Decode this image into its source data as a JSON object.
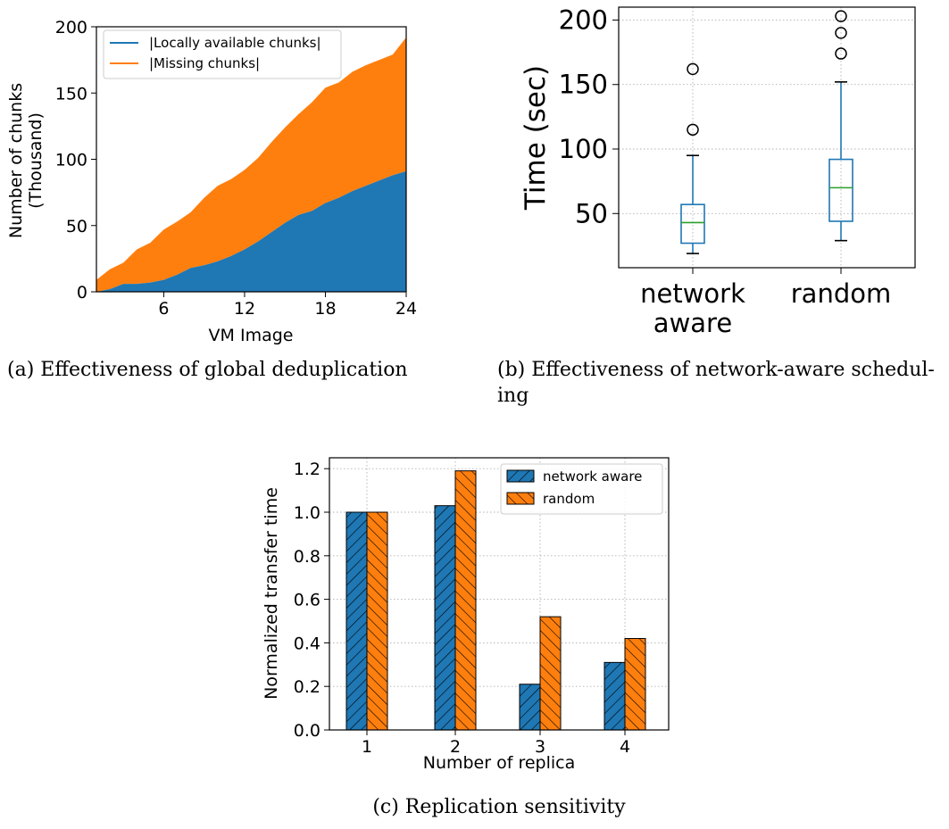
{
  "colors": {
    "blue": "#1f77b4",
    "orange": "#ff7f0e",
    "green": "#2ca02c"
  },
  "chart_data": [
    {
      "id": "a",
      "type": "area",
      "stacked": true,
      "caption": "(a) Effectiveness of global deduplication",
      "xlabel": "VM Image",
      "ylabel": [
        "Number of chunks",
        "(Thousand)"
      ],
      "xlim": [
        1,
        24
      ],
      "ylim": [
        0,
        200
      ],
      "xticks": [
        6,
        12,
        18,
        24
      ],
      "yticks": [
        0,
        50,
        100,
        150,
        200
      ],
      "grid": false,
      "legend_position": "top-left",
      "x": [
        1,
        2,
        3,
        4,
        5,
        6,
        7,
        8,
        9,
        10,
        11,
        12,
        13,
        14,
        15,
        16,
        17,
        18,
        19,
        20,
        21,
        22,
        23,
        24
      ],
      "series": [
        {
          "name": "|Locally available chunks|",
          "color": "#1f77b4",
          "values": [
            0,
            2,
            6,
            6,
            7,
            9,
            13,
            18,
            20,
            23,
            27,
            32,
            38,
            45,
            52,
            58,
            61,
            67,
            71,
            76,
            80,
            84,
            88,
            91
          ]
        },
        {
          "name": "|Missing chunks|",
          "color": "#ff7f0e",
          "values": [
            9,
            15,
            16,
            26,
            30,
            38,
            40,
            42,
            51,
            57,
            58,
            60,
            63,
            68,
            72,
            76,
            82,
            87,
            87,
            90,
            91,
            91,
            91,
            101
          ]
        }
      ],
      "totals": [
        9,
        17,
        22,
        32,
        37,
        47,
        53,
        60,
        71,
        80,
        85,
        92,
        101,
        113,
        124,
        134,
        143,
        154,
        158,
        166,
        171,
        175,
        179,
        192
      ]
    },
    {
      "id": "b",
      "type": "box",
      "caption": [
        "(b) Effectiveness of network-aware schedul-",
        "ing"
      ],
      "ylabel": "Time (sec)",
      "ylim": [
        8,
        210
      ],
      "yticks": [
        50,
        100,
        150,
        200
      ],
      "grid": true,
      "categories": [
        [
          "network",
          "aware"
        ],
        [
          "random"
        ]
      ],
      "boxes": [
        {
          "name": "network aware",
          "whisker_low": 19,
          "q1": 27,
          "median": 43,
          "q3": 57,
          "whisker_high": 95,
          "fliers": [
            115,
            162
          ]
        },
        {
          "name": "random",
          "whisker_low": 29,
          "q1": 44,
          "median": 70,
          "q3": 92,
          "whisker_high": 152,
          "fliers": [
            174,
            190,
            203
          ]
        }
      ]
    },
    {
      "id": "c",
      "type": "bar",
      "caption": "(c) Replication sensitivity",
      "xlabel": "Number of replica",
      "ylabel": "Normalized transfer time",
      "ylim": [
        0,
        1.25
      ],
      "yticks": [
        "0.0",
        "0.2",
        "0.4",
        "0.6",
        "0.8",
        "1.0",
        "1.2"
      ],
      "grid": true,
      "legend_position": "top-right",
      "categories": [
        "1",
        "2",
        "3",
        "4"
      ],
      "series": [
        {
          "name": "network aware",
          "color": "#1f77b4",
          "hatch": "//",
          "values": [
            1.0,
            1.03,
            0.21,
            0.31
          ]
        },
        {
          "name": "random",
          "color": "#ff7f0e",
          "hatch": "\\\\",
          "values": [
            1.0,
            1.19,
            0.52,
            0.42
          ]
        }
      ]
    }
  ]
}
